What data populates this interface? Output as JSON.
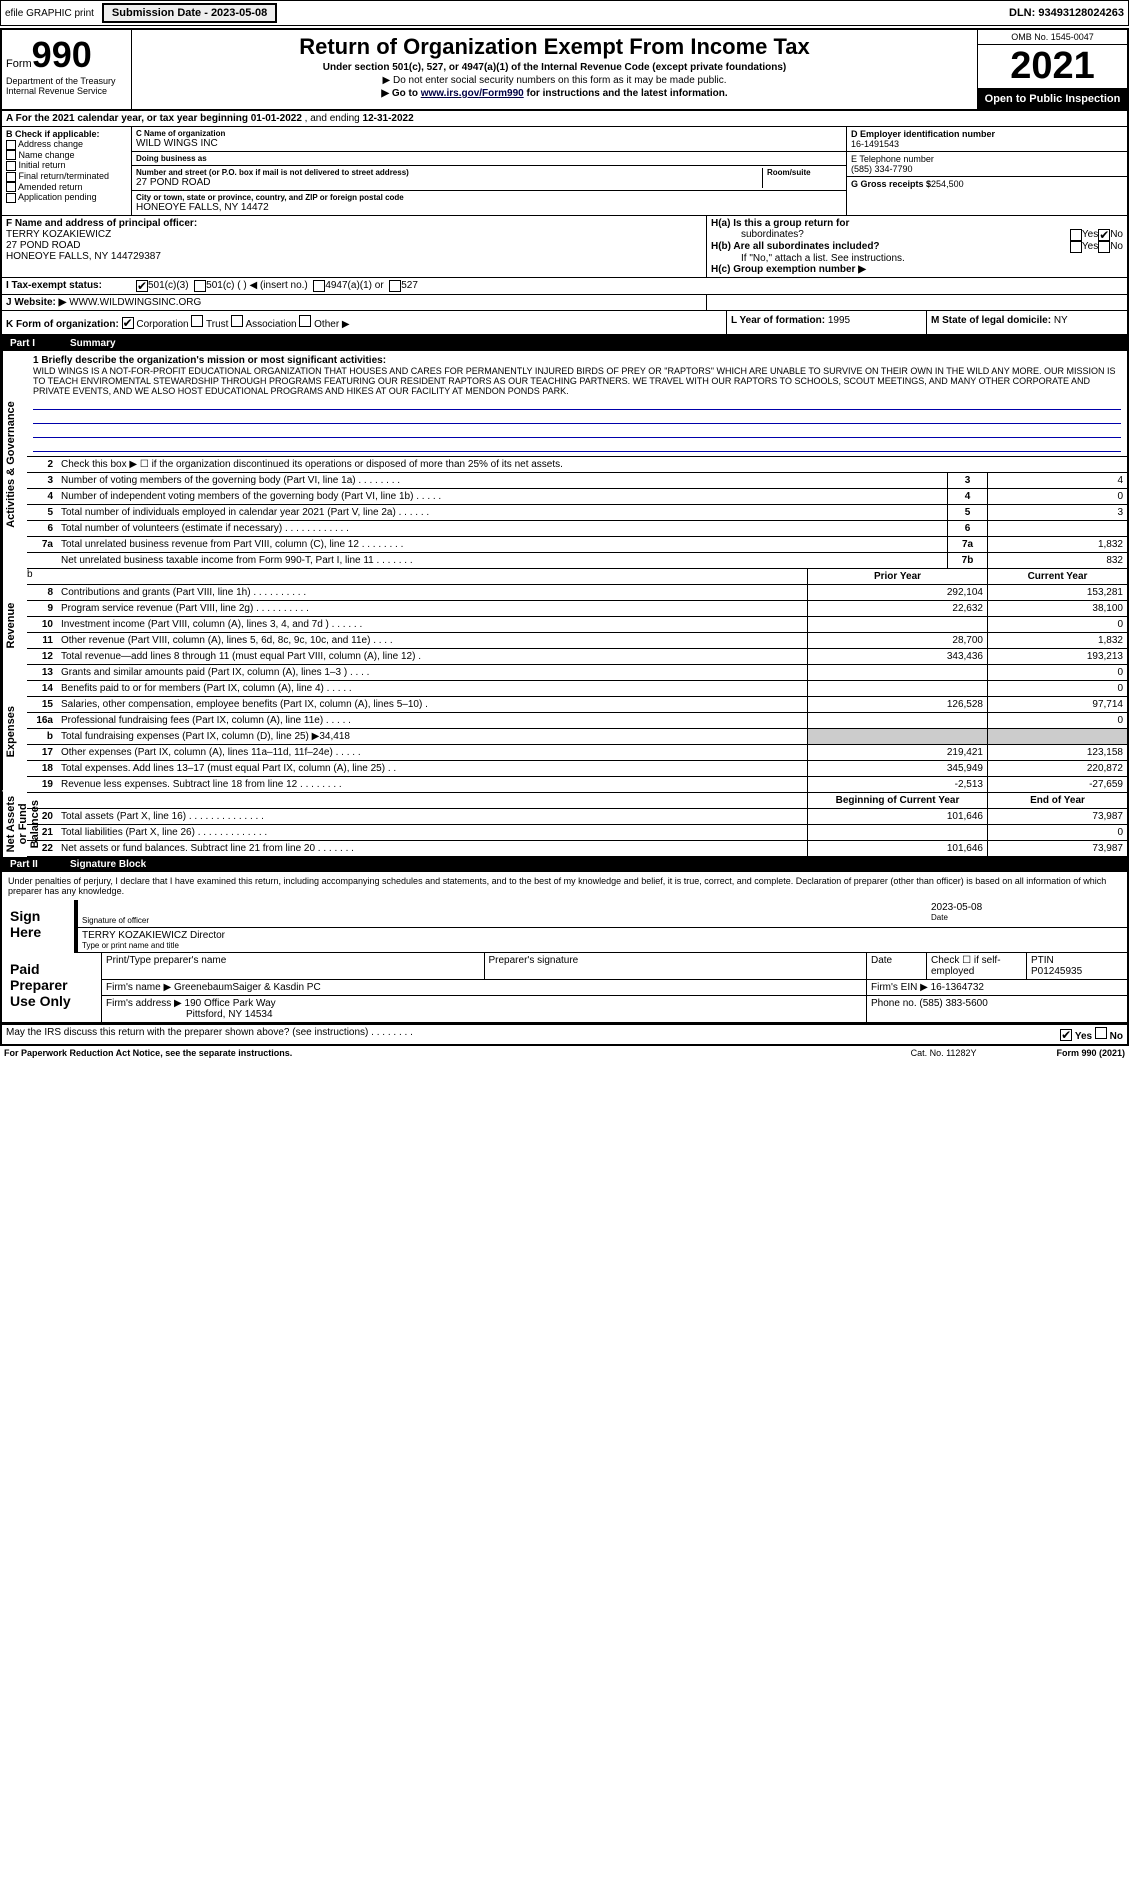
{
  "topBar": {
    "efile": "efile GRAPHIC print",
    "submissionLabel": "Submission Date - 2023-05-08",
    "dln": "DLN: 93493128024263"
  },
  "header": {
    "formPrefix": "Form",
    "formNum": "990",
    "dept": "Department of the Treasury",
    "irs": "Internal Revenue Service",
    "title": "Return of Organization Exempt From Income Tax",
    "sub1": "Under section 501(c), 527, or 4947(a)(1) of the Internal Revenue Code (except private foundations)",
    "sub2": "▶ Do not enter social security numbers on this form as it may be made public.",
    "sub3": "▶ Go to www.irs.gov/Form990 for instructions and the latest information.",
    "omb": "OMB No. 1545-0047",
    "year": "2021",
    "openPub": "Open to Public Inspection"
  },
  "rowA": {
    "prefix": "A For the 2021 calendar year, or tax year beginning",
    "begin": "01-01-2022",
    "mid": ", and ending",
    "end": "12-31-2022"
  },
  "colB": {
    "hdr": "B Check if applicable:",
    "items": [
      "Address change",
      "Name change",
      "Initial return",
      "Final return/terminated",
      "Amended return",
      "Application pending"
    ]
  },
  "colC": {
    "nameLbl": "C Name of organization",
    "name": "WILD WINGS INC",
    "dbaLbl": "Doing business as",
    "dba": "",
    "addrLbl": "Number and street (or P.O. box if mail is not delivered to street address)",
    "addr": "27 POND ROAD",
    "roomLbl": "Room/suite",
    "cityLbl": "City or town, state or province, country, and ZIP or foreign postal code",
    "city": "HONEOYE FALLS, NY  14472"
  },
  "colD": {
    "einLbl": "D Employer identification number",
    "ein": "16-1491543",
    "telLbl": "E Telephone number",
    "tel": "(585) 334-7790",
    "grossLbl": "G Gross receipts $",
    "gross": "254,500"
  },
  "rowF": {
    "lbl": "F Name and address of principal officer:",
    "name": "TERRY KOZAKIEWICZ",
    "addr1": "27 POND ROAD",
    "addr2": "HONEOYE FALLS, NY  144729387"
  },
  "rowH": {
    "ha": "H(a)  Is this a group return for",
    "hasub": "subordinates?",
    "hb": "H(b)  Are all subordinates included?",
    "hbnote": "If \"No,\" attach a list. See instructions.",
    "hc": "H(c)  Group exemption number ▶",
    "yes": "Yes",
    "no": "No"
  },
  "rowI": {
    "lbl": "I    Tax-exempt status:",
    "o1": "501(c)(3)",
    "o2": "501(c) (   ) ◀ (insert no.)",
    "o3": "4947(a)(1) or",
    "o4": "527"
  },
  "rowJ": {
    "lbl": "J   Website: ▶",
    "val": "WWW.WILDWINGSINC.ORG"
  },
  "rowK": {
    "lbl": "K Form of organization:",
    "o1": "Corporation",
    "o2": "Trust",
    "o3": "Association",
    "o4": "Other ▶",
    "l": "L Year of formation:",
    "lval": "1995",
    "m": "M State of legal domicile:",
    "mval": "NY"
  },
  "part1": {
    "num": "Part I",
    "title": "Summary"
  },
  "vtabs": {
    "gov": "Activities & Governance",
    "rev": "Revenue",
    "exp": "Expenses",
    "net": "Net Assets or Fund Balances"
  },
  "mission": {
    "lbl": "1   Briefly describe the organization's mission or most significant activities:",
    "txt": "WILD WINGS IS A NOT-FOR-PROFIT EDUCATIONAL ORGANIZATION THAT HOUSES AND CARES FOR PERMANENTLY INJURED BIRDS OF PREY OR \"RAPTORS\" WHICH ARE UNABLE TO SURVIVE ON THEIR OWN IN THE WILD ANY MORE. OUR MISSION IS TO TEACH ENVIROMENTAL STEWARDSHIP THROUGH PROGRAMS FEATURING OUR RESIDENT RAPTORS AS OUR TEACHING PARTNERS. WE TRAVEL WITH OUR RAPTORS TO SCHOOLS, SCOUT MEETINGS, AND MANY OTHER CORPORATE AND PRIVATE EVENTS, AND WE ALSO HOST EDUCATIONAL PROGRAMS AND HIKES AT OUR FACILITY AT MENDON PONDS PARK."
  },
  "line2": "Check this box ▶ ☐ if the organization discontinued its operations or disposed of more than 25% of its net assets.",
  "lines_single": [
    {
      "n": "3",
      "d": "Number of voting members of the governing body (Part VI, line 1a)   .   .   .   .   .   .   .   .",
      "b": "3",
      "v": "4"
    },
    {
      "n": "4",
      "d": "Number of independent voting members of the governing body (Part VI, line 1b)   .   .   .   .   .",
      "b": "4",
      "v": "0"
    },
    {
      "n": "5",
      "d": "Total number of individuals employed in calendar year 2021 (Part V, line 2a)   .   .   .   .   .   .",
      "b": "5",
      "v": "3"
    },
    {
      "n": "6",
      "d": "Total number of volunteers (estimate if necessary)   .   .   .   .   .   .   .   .   .   .   .   .",
      "b": "6",
      "v": ""
    },
    {
      "n": "7a",
      "d": "Total unrelated business revenue from Part VIII, column (C), line 12   .   .   .   .   .   .   .   .",
      "b": "7a",
      "v": "1,832"
    },
    {
      "n": "",
      "d": "Net unrelated business taxable income from Form 990-T, Part I, line 11   .   .   .   .   .   .   .",
      "b": "7b",
      "v": "832"
    }
  ],
  "hdrPY": "Prior Year",
  "hdrCY": "Current Year",
  "lines_rev": [
    {
      "n": "8",
      "d": "Contributions and grants (Part VIII, line 1h)   .   .   .   .   .   .   .   .   .   .",
      "p": "292,104",
      "c": "153,281"
    },
    {
      "n": "9",
      "d": "Program service revenue (Part VIII, line 2g)   .   .   .   .   .   .   .   .   .   .",
      "p": "22,632",
      "c": "38,100"
    },
    {
      "n": "10",
      "d": "Investment income (Part VIII, column (A), lines 3, 4, and 7d )   .   .   .   .   .   .",
      "p": "",
      "c": "0"
    },
    {
      "n": "11",
      "d": "Other revenue (Part VIII, column (A), lines 5, 6d, 8c, 9c, 10c, and 11e)   .   .   .   .",
      "p": "28,700",
      "c": "1,832"
    },
    {
      "n": "12",
      "d": "Total revenue—add lines 8 through 11 (must equal Part VIII, column (A), line 12)   .",
      "p": "343,436",
      "c": "193,213"
    }
  ],
  "lines_exp": [
    {
      "n": "13",
      "d": "Grants and similar amounts paid (Part IX, column (A), lines 1–3 )   .   .   .   .",
      "p": "",
      "c": "0"
    },
    {
      "n": "14",
      "d": "Benefits paid to or for members (Part IX, column (A), line 4)   .   .   .   .   .",
      "p": "",
      "c": "0"
    },
    {
      "n": "15",
      "d": "Salaries, other compensation, employee benefits (Part IX, column (A), lines 5–10)   .",
      "p": "126,528",
      "c": "97,714"
    },
    {
      "n": "16a",
      "d": "Professional fundraising fees (Part IX, column (A), line 11e)   .   .   .   .   .",
      "p": "",
      "c": "0"
    },
    {
      "n": "b",
      "d": "Total fundraising expenses (Part IX, column (D), line 25) ▶34,418",
      "p": "",
      "c": "",
      "shade": true
    },
    {
      "n": "17",
      "d": "Other expenses (Part IX, column (A), lines 11a–11d, 11f–24e)   .   .   .   .   .",
      "p": "219,421",
      "c": "123,158"
    },
    {
      "n": "18",
      "d": "Total expenses. Add lines 13–17 (must equal Part IX, column (A), line 25)   .   .",
      "p": "345,949",
      "c": "220,872"
    },
    {
      "n": "19",
      "d": "Revenue less expenses. Subtract line 18 from line 12   .   .   .   .   .   .   .   .",
      "p": "-2,513",
      "c": "-27,659"
    }
  ],
  "hdrBY": "Beginning of Current Year",
  "hdrEY": "End of Year",
  "lines_net": [
    {
      "n": "20",
      "d": "Total assets (Part X, line 16)   .   .   .   .   .   .   .   .   .   .   .   .   .   .",
      "p": "101,646",
      "c": "73,987"
    },
    {
      "n": "21",
      "d": "Total liabilities (Part X, line 26)   .   .   .   .   .   .   .   .   .   .   .   .   .",
      "p": "",
      "c": "0"
    },
    {
      "n": "22",
      "d": "Net assets or fund balances. Subtract line 21 from line 20   .   .   .   .   .   .   .",
      "p": "101,646",
      "c": "73,987"
    }
  ],
  "part2": {
    "num": "Part II",
    "title": "Signature Block"
  },
  "sigTxt": "Under penalties of perjury, I declare that I have examined this return, including accompanying schedules and statements, and to the best of my knowledge and belief, it is true, correct, and complete. Declaration of preparer (other than officer) is based on all information of which preparer has any knowledge.",
  "sign": {
    "lbl": "Sign Here",
    "sigOf": "Signature of officer",
    "date": "2023-05-08",
    "dateLbl": "Date",
    "name": "TERRY KOZAKIEWICZ Director",
    "nameLbl": "Type or print name and title"
  },
  "prep": {
    "lbl": "Paid Preparer Use Only",
    "r1c1": "Print/Type preparer's name",
    "r1c2": "Preparer's signature",
    "r1c3": "Date",
    "r1c4": "Check ☐ if self-employed",
    "r1c5": "PTIN",
    "ptin": "P01245935",
    "r2lbl": "Firm's name    ▶",
    "firm": "GreenebaumSaiger & Kasdin PC",
    "r2ein": "Firm's EIN ▶",
    "ein": "16-1364732",
    "r3lbl": "Firm's address ▶",
    "addr1": "190 Office Park Way",
    "addr2": "Pittsford, NY  14534",
    "r3ph": "Phone no.",
    "phone": "(585) 383-5600"
  },
  "discuss": "May the IRS discuss this return with the preparer shown above? (see instructions)   .   .   .   .   .   .   .   .",
  "footer": {
    "l": "For Paperwork Reduction Act Notice, see the separate instructions.",
    "m": "Cat. No. 11282Y",
    "r": "Form 990 (2021)"
  }
}
